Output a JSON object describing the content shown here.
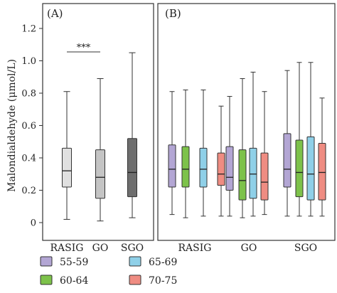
{
  "chart_data": [
    {
      "type": "boxplot",
      "panel_label": "(A)",
      "ylabel": "Malondialdehyde (μmol/L)",
      "ylim": [
        0,
        1.2
      ],
      "yticks": [
        0,
        0.2,
        0.4,
        0.6,
        0.8,
        1.0,
        1.2
      ],
      "ytick_labels": [
        "0",
        "0.2",
        "0.4",
        "0.6",
        "0.8",
        "1.0",
        "1.2"
      ],
      "categories": [
        "RASIG",
        "GO",
        "SGO"
      ],
      "colors": [
        "#e0e0e0",
        "#c4c4c4",
        "#6e6e6e"
      ],
      "boxes": [
        {
          "category": "RASIG",
          "min": 0.02,
          "q1": 0.22,
          "median": 0.32,
          "q3": 0.46,
          "max": 0.81
        },
        {
          "category": "GO",
          "min": 0.01,
          "q1": 0.15,
          "median": 0.28,
          "q3": 0.45,
          "max": 0.89
        },
        {
          "category": "SGO",
          "min": 0.03,
          "q1": 0.16,
          "median": 0.31,
          "q3": 0.52,
          "max": 1.05
        }
      ],
      "annotation": {
        "text": "***",
        "between": [
          "RASIG",
          "GO"
        ],
        "y": 0.53
      }
    },
    {
      "type": "boxplot",
      "panel_label": "(B)",
      "ylim": [
        0,
        1.2
      ],
      "categories": [
        "RASIG",
        "GO",
        "SGO"
      ],
      "series": [
        {
          "name": "55-59",
          "color": "#b3a6d4",
          "boxes": [
            {
              "min": 0.05,
              "q1": 0.22,
              "median": 0.33,
              "q3": 0.48,
              "max": 0.81
            },
            {
              "min": 0.04,
              "q1": 0.2,
              "median": 0.28,
              "q3": 0.47,
              "max": 0.78
            },
            {
              "min": 0.04,
              "q1": 0.22,
              "median": 0.33,
              "q3": 0.55,
              "max": 0.94
            }
          ]
        },
        {
          "name": "60-64",
          "color": "#7dc24a",
          "boxes": [
            {
              "min": 0.03,
              "q1": 0.22,
              "median": 0.33,
              "q3": 0.47,
              "max": 0.82
            },
            {
              "min": 0.03,
              "q1": 0.14,
              "median": 0.26,
              "q3": 0.45,
              "max": 0.89
            },
            {
              "min": 0.04,
              "q1": 0.16,
              "median": 0.31,
              "q3": 0.51,
              "max": 0.99
            }
          ]
        },
        {
          "name": "65-69",
          "color": "#8fd0e8",
          "boxes": [
            {
              "min": 0.04,
              "q1": 0.22,
              "median": 0.33,
              "q3": 0.46,
              "max": 0.82
            },
            {
              "min": 0.04,
              "q1": 0.15,
              "median": 0.3,
              "q3": 0.46,
              "max": 0.93
            },
            {
              "min": 0.04,
              "q1": 0.14,
              "median": 0.3,
              "q3": 0.53,
              "max": 0.99
            }
          ]
        },
        {
          "name": "70-75",
          "color": "#ef8c82",
          "boxes": [
            {
              "min": 0.04,
              "q1": 0.23,
              "median": 0.3,
              "q3": 0.43,
              "max": 0.72
            },
            {
              "min": 0.05,
              "q1": 0.14,
              "median": 0.25,
              "q3": 0.43,
              "max": 0.81
            },
            {
              "min": 0.04,
              "q1": 0.14,
              "median": 0.31,
              "q3": 0.49,
              "max": 0.77
            }
          ]
        }
      ]
    }
  ],
  "legend": {
    "placement": "bottom-left",
    "entries": [
      "55-59",
      "65-69",
      "60-64",
      "70-75"
    ]
  }
}
